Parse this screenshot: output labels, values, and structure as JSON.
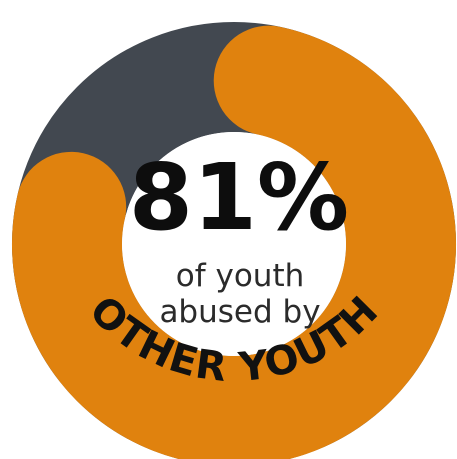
{
  "chart_data": {
    "type": "pie",
    "style": "donut",
    "values": [
      81,
      19
    ],
    "colors": [
      "#e0820e",
      "#424850"
    ],
    "center_value": "81%",
    "center_lines": [
      "of youth",
      "abused by"
    ],
    "arc_label": "OTHER YOUTH"
  }
}
